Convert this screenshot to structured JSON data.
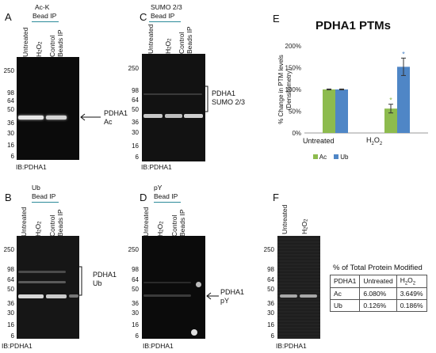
{
  "panels": {
    "A": {
      "letter": "A",
      "header_line1": "Ac-K",
      "header_line2": "Bead IP",
      "lanes": [
        "Untreated",
        "H",
        "Control Beads IP"
      ],
      "lane2_sub": "2",
      "lane2_tail": "O",
      "lane2_sub2": "2",
      "annotation_line1": "PDHA1",
      "annotation_line2": "Ac",
      "ib": "IB:PDHA1"
    },
    "B": {
      "letter": "B",
      "header_line1": "Ub",
      "header_line2": "Bead IP",
      "annotation_line1": "PDHA1",
      "annotation_line2": "Ub",
      "ib": "IB:PDHA1"
    },
    "C": {
      "letter": "C",
      "header_line1": "SUMO 2/3",
      "header_line2": "Bead IP",
      "annotation_line1": "PDHA1",
      "annotation_line2": "SUMO 2/3",
      "ib": "IB:PDHA1"
    },
    "D": {
      "letter": "D",
      "header_line1": "pY",
      "header_line2": "Bead IP",
      "annotation_line1": "PDHA1",
      "annotation_line2": "pY",
      "ib": "IB:PDHA1"
    },
    "E": {
      "letter": "E"
    },
    "F": {
      "letter": "F",
      "ib": "IB:PDHA1"
    }
  },
  "lane_labels": {
    "untreated": "Untreated",
    "h2o2_h": "H",
    "h2o2_o": "O",
    "two": "2",
    "control": "Control",
    "beads_ip": "Beads IP"
  },
  "mw_markers": [
    "250",
    "98",
    "64",
    "50",
    "36",
    "30",
    "16",
    "6"
  ],
  "table": {
    "title": "% of Total Protein Modified",
    "header": [
      "PDHA1",
      "Untreated",
      "H2O2"
    ],
    "rows": [
      [
        "Ac",
        "6.080%",
        "3.649%"
      ],
      [
        "Ub",
        "0.126%",
        "0.186%"
      ]
    ]
  },
  "chart_data": {
    "type": "bar",
    "title": "PDHA1 PTMs",
    "ylabel": "% Change in PTM levels (Densitometry)",
    "ylabel_line1": "% Change in PTM levels",
    "ylabel_line2": "(Densitometry)",
    "categories": [
      "Untreated",
      "H2O2"
    ],
    "series": [
      {
        "name": "Ac",
        "values": [
          100,
          56
        ],
        "errors": [
          1,
          10
        ],
        "color": "#8dbb4e"
      },
      {
        "name": "Ub",
        "values": [
          100,
          152
        ],
        "errors": [
          1,
          20
        ],
        "color": "#4f86c6"
      }
    ],
    "yticks": [
      "0%",
      "50%",
      "100%",
      "150%",
      "200%"
    ],
    "ylim": [
      0,
      200
    ],
    "significance": [
      "H2O2 Ac",
      "H2O2 Ub"
    ],
    "legend": "bottom"
  }
}
